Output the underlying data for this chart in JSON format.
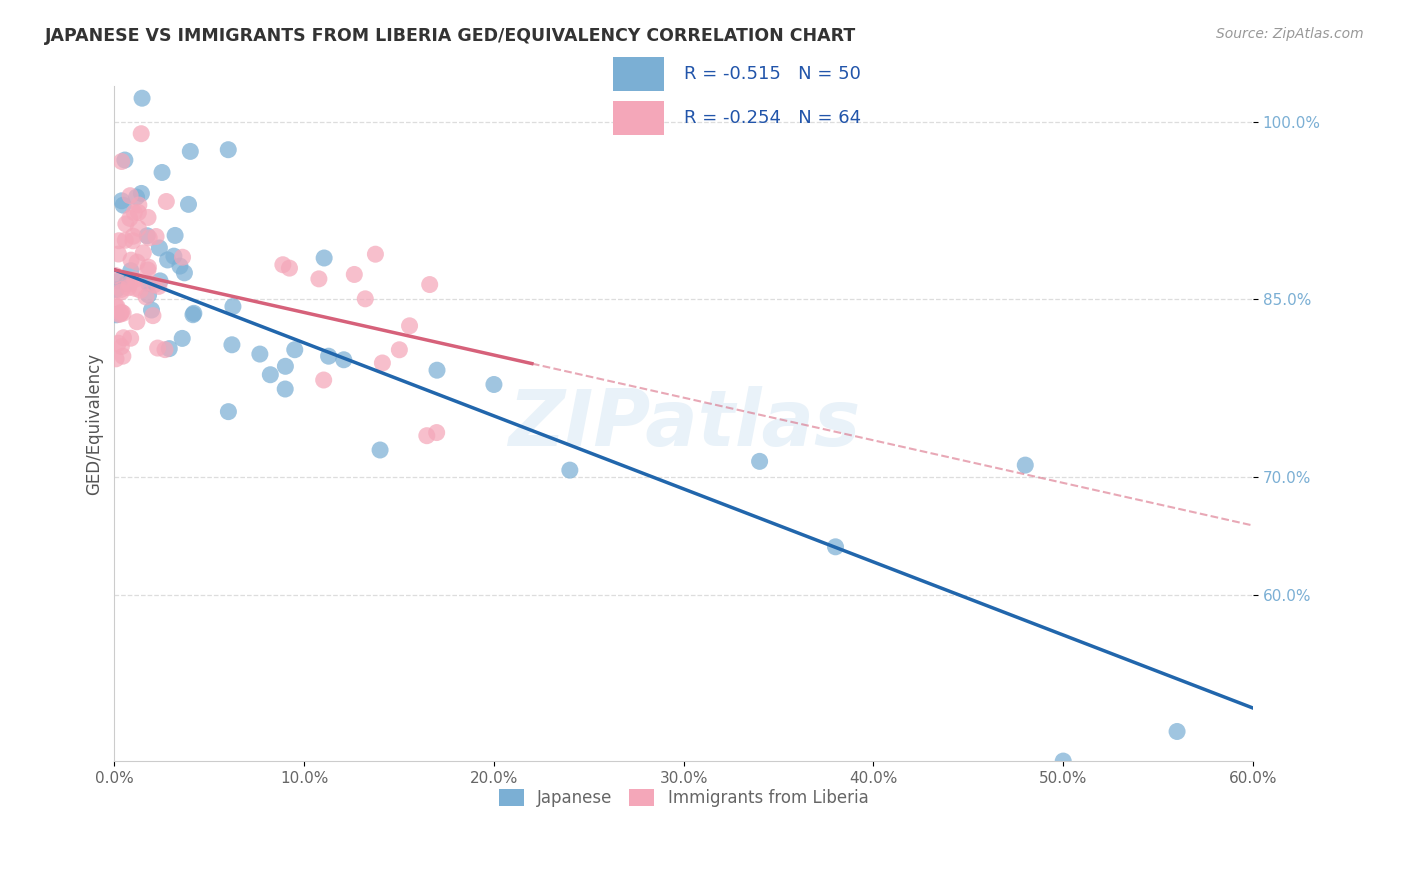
{
  "title": "JAPANESE VS IMMIGRANTS FROM LIBERIA GED/EQUIVALENCY CORRELATION CHART",
  "source": "Source: ZipAtlas.com",
  "ylabel": "GED/Equivalency",
  "y_ticks": [
    0.6,
    0.7,
    0.85,
    1.0
  ],
  "x_range": [
    0.0,
    0.6
  ],
  "y_range": [
    0.46,
    1.03
  ],
  "legend_blue_r": "-0.515",
  "legend_blue_n": "50",
  "legend_pink_r": "-0.254",
  "legend_pink_n": "64",
  "blue_color": "#7bafd4",
  "pink_color": "#f4a7b9",
  "blue_line_color": "#2166ac",
  "pink_line_color": "#d6617a",
  "watermark": "ZIPatlas"
}
